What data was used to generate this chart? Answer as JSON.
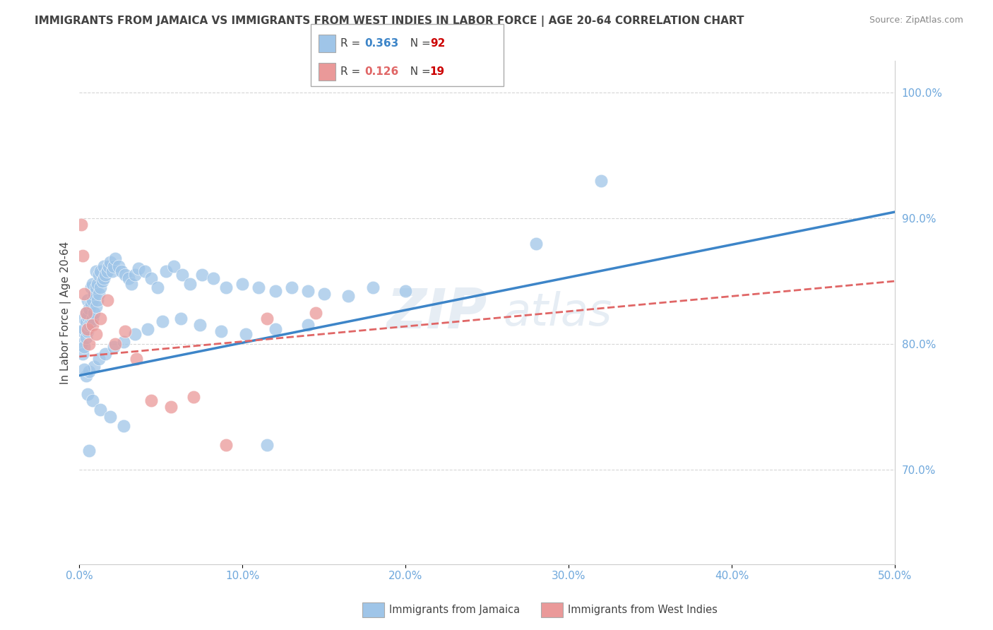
{
  "title": "IMMIGRANTS FROM JAMAICA VS IMMIGRANTS FROM WEST INDIES IN LABOR FORCE | AGE 20-64 CORRELATION CHART",
  "source": "Source: ZipAtlas.com",
  "ylabel": "In Labor Force | Age 20-64",
  "r_jamaica": 0.363,
  "n_jamaica": 92,
  "r_westindies": 0.126,
  "n_westindies": 19,
  "legend_jamaica": "Immigrants from Jamaica",
  "legend_westindies": "Immigrants from West Indies",
  "blue_color": "#9fc5e8",
  "pink_color": "#ea9999",
  "blue_line_color": "#3d85c8",
  "pink_line_color": "#e06666",
  "title_color": "#434343",
  "axis_label_color": "#6fa8dc",
  "legend_n_color": "#cc0000",
  "xmin": 0.0,
  "xmax": 0.5,
  "ymin": 0.625,
  "ymax": 1.025,
  "ytick_positions": [
    0.7,
    0.8,
    0.9,
    1.0
  ],
  "ytick_labels": [
    "70.0%",
    "80.0%",
    "90.0%",
    "100.0%"
  ],
  "xtick_positions": [
    0.0,
    0.1,
    0.2,
    0.3,
    0.4,
    0.5
  ],
  "xtick_labels": [
    "0.0%",
    "10.0%",
    "20.0%",
    "30.0%",
    "40.0%",
    "50.0%"
  ],
  "blue_trend_x0": 0.0,
  "blue_trend_y0": 0.775,
  "blue_trend_x1": 0.5,
  "blue_trend_y1": 0.905,
  "pink_trend_x0": 0.0,
  "pink_trend_y0": 0.79,
  "pink_trend_x1": 0.5,
  "pink_trend_y1": 0.85,
  "jamaica_x": [
    0.001,
    0.002,
    0.002,
    0.003,
    0.003,
    0.003,
    0.004,
    0.004,
    0.004,
    0.005,
    0.005,
    0.005,
    0.006,
    0.006,
    0.007,
    0.007,
    0.007,
    0.008,
    0.008,
    0.008,
    0.009,
    0.009,
    0.01,
    0.01,
    0.01,
    0.011,
    0.011,
    0.012,
    0.012,
    0.013,
    0.013,
    0.014,
    0.015,
    0.015,
    0.016,
    0.017,
    0.018,
    0.019,
    0.02,
    0.021,
    0.022,
    0.024,
    0.026,
    0.028,
    0.03,
    0.032,
    0.034,
    0.036,
    0.04,
    0.044,
    0.048,
    0.053,
    0.058,
    0.063,
    0.068,
    0.075,
    0.082,
    0.09,
    0.1,
    0.11,
    0.12,
    0.13,
    0.14,
    0.15,
    0.165,
    0.18,
    0.2,
    0.004,
    0.006,
    0.009,
    0.012,
    0.016,
    0.021,
    0.027,
    0.034,
    0.042,
    0.051,
    0.062,
    0.074,
    0.087,
    0.102,
    0.12,
    0.14,
    0.005,
    0.008,
    0.013,
    0.019,
    0.027,
    0.28,
    0.32,
    0.003,
    0.006,
    0.115
  ],
  "jamaica_y": [
    0.8,
    0.792,
    0.81,
    0.798,
    0.812,
    0.82,
    0.805,
    0.818,
    0.825,
    0.81,
    0.822,
    0.835,
    0.815,
    0.828,
    0.818,
    0.832,
    0.845,
    0.82,
    0.835,
    0.848,
    0.825,
    0.84,
    0.83,
    0.845,
    0.858,
    0.835,
    0.848,
    0.84,
    0.855,
    0.845,
    0.858,
    0.85,
    0.852,
    0.862,
    0.855,
    0.858,
    0.862,
    0.865,
    0.858,
    0.862,
    0.868,
    0.862,
    0.858,
    0.855,
    0.852,
    0.848,
    0.855,
    0.86,
    0.858,
    0.852,
    0.845,
    0.858,
    0.862,
    0.855,
    0.848,
    0.855,
    0.852,
    0.845,
    0.848,
    0.845,
    0.842,
    0.845,
    0.842,
    0.84,
    0.838,
    0.845,
    0.842,
    0.775,
    0.778,
    0.782,
    0.788,
    0.792,
    0.798,
    0.802,
    0.808,
    0.812,
    0.818,
    0.82,
    0.815,
    0.81,
    0.808,
    0.812,
    0.815,
    0.76,
    0.755,
    0.748,
    0.742,
    0.735,
    0.88,
    0.93,
    0.78,
    0.715,
    0.72
  ],
  "westindies_x": [
    0.001,
    0.002,
    0.003,
    0.004,
    0.005,
    0.006,
    0.008,
    0.01,
    0.013,
    0.017,
    0.022,
    0.028,
    0.035,
    0.044,
    0.056,
    0.07,
    0.09,
    0.115,
    0.145
  ],
  "westindies_y": [
    0.895,
    0.87,
    0.84,
    0.825,
    0.812,
    0.8,
    0.815,
    0.808,
    0.82,
    0.835,
    0.8,
    0.81,
    0.788,
    0.755,
    0.75,
    0.758,
    0.72,
    0.82,
    0.825
  ]
}
